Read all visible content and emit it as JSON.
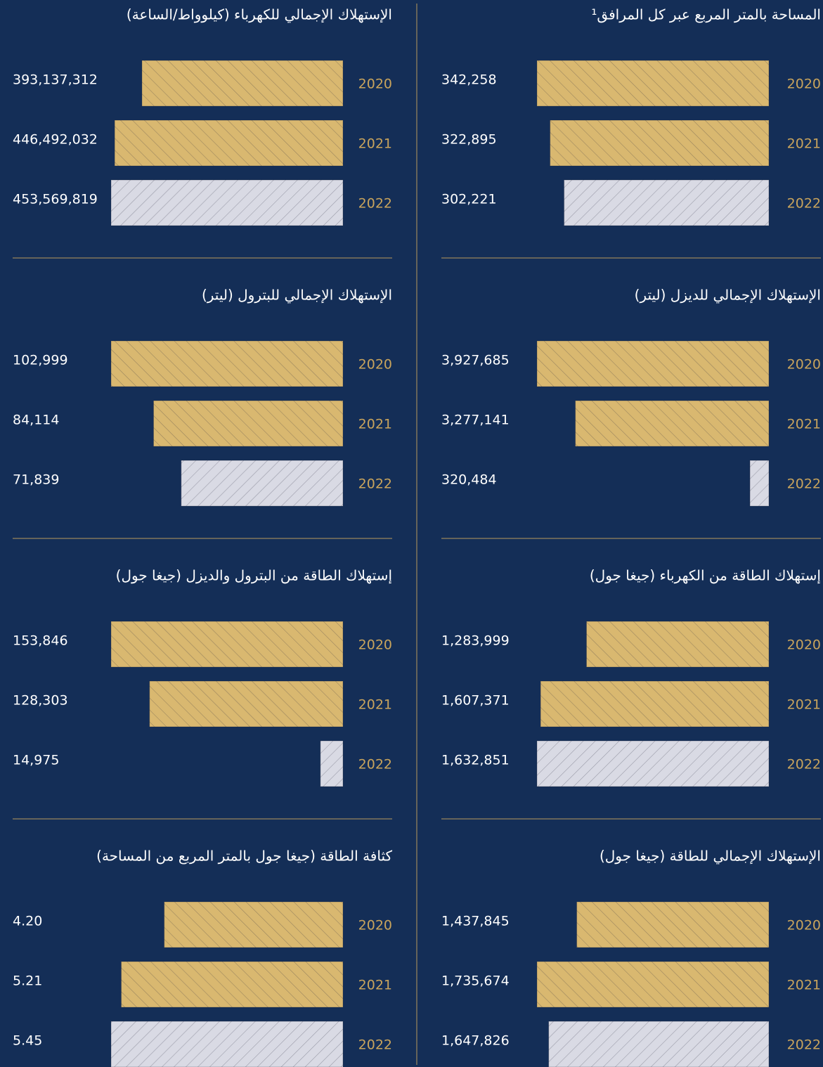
{
  "chart_data": [
    {
      "type": "bar",
      "title": "المساحة بالمتر المربع عبر كل المرافق¹",
      "categories": [
        "2020",
        "2021",
        "2022"
      ],
      "values": [
        342258,
        322895,
        302221
      ],
      "value_labels": [
        "342,258",
        "322,895",
        "302,221"
      ],
      "colors": [
        "#d9b870",
        "#d9b870",
        "#d9dae4"
      ]
    },
    {
      "type": "bar",
      "title": "الإستهلاك الإجمالي للكهرباء (كيلوواط/الساعة)",
      "categories": [
        "2020",
        "2021",
        "2022"
      ],
      "values": [
        393137312,
        446492032,
        453569819
      ],
      "value_labels": [
        "393,137,312",
        "446,492,032",
        "453,569,819"
      ],
      "colors": [
        "#d9b870",
        "#d9b870",
        "#d9dae4"
      ]
    },
    {
      "type": "bar",
      "title": "الإستهلاك الإجمالي للديزل (ليتر)",
      "categories": [
        "2020",
        "2021",
        "2022"
      ],
      "values": [
        3927685,
        3277141,
        320484
      ],
      "value_labels": [
        "3,927,685",
        "3,277,141",
        "320,484"
      ],
      "colors": [
        "#d9b870",
        "#d9b870",
        "#d9dae4"
      ]
    },
    {
      "type": "bar",
      "title": "الإستهلاك الإجمالي للبترول (ليتر)",
      "categories": [
        "2020",
        "2021",
        "2022"
      ],
      "values": [
        102999,
        84114,
        71839
      ],
      "value_labels": [
        "102,999",
        "84,114",
        "71,839"
      ],
      "colors": [
        "#d9b870",
        "#d9b870",
        "#d9dae4"
      ]
    },
    {
      "type": "bar",
      "title": "إستهلاك الطاقة من الكهرباء (جيغا جول)",
      "categories": [
        "2020",
        "2021",
        "2022"
      ],
      "values": [
        1283999,
        1607371,
        1632851
      ],
      "value_labels": [
        "1,283,999",
        "1,607,371",
        "1,632,851"
      ],
      "colors": [
        "#d9b870",
        "#d9b870",
        "#d9dae4"
      ]
    },
    {
      "type": "bar",
      "title": "إستهلاك الطاقة من البترول والديزل (جيغا جول)",
      "categories": [
        "2020",
        "2021",
        "2022"
      ],
      "values": [
        153846,
        128303,
        14975
      ],
      "value_labels": [
        "153,846",
        "128,303",
        "14,975"
      ],
      "colors": [
        "#d9b870",
        "#d9b870",
        "#d9dae4"
      ]
    },
    {
      "type": "bar",
      "title": "الإستهلاك الإجمالي للطاقة (جيغا جول)",
      "categories": [
        "2020",
        "2021",
        "2022"
      ],
      "values": [
        1437845,
        1735674,
        1647826
      ],
      "value_labels": [
        "1,437,845",
        "1,735,674",
        "1,647,826"
      ],
      "colors": [
        "#d9b870",
        "#d9b870",
        "#d9dae4"
      ]
    },
    {
      "type": "bar",
      "title": "كثافة الطاقة (جيغا جول بالمتر المربع من المساحة)",
      "categories": [
        "2020",
        "2021",
        "2022"
      ],
      "values": [
        4.2,
        5.21,
        5.45
      ],
      "value_labels": [
        "4.20",
        "5.21",
        "5.45"
      ],
      "colors": [
        "#d9b870",
        "#d9b870",
        "#d9dae4"
      ]
    }
  ]
}
